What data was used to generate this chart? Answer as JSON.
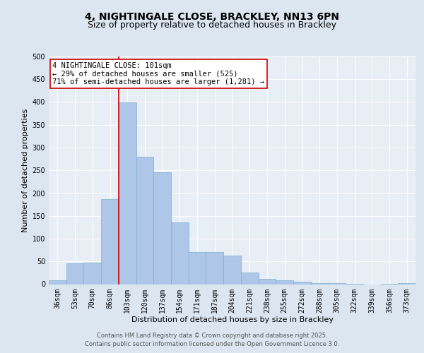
{
  "title1": "4, NIGHTINGALE CLOSE, BRACKLEY, NN13 6PN",
  "title2": "Size of property relative to detached houses in Brackley",
  "xlabel": "Distribution of detached houses by size in Brackley",
  "ylabel": "Number of detached properties",
  "categories": [
    "36sqm",
    "53sqm",
    "70sqm",
    "86sqm",
    "103sqm",
    "120sqm",
    "137sqm",
    "154sqm",
    "171sqm",
    "187sqm",
    "204sqm",
    "221sqm",
    "238sqm",
    "255sqm",
    "272sqm",
    "288sqm",
    "305sqm",
    "322sqm",
    "339sqm",
    "356sqm",
    "373sqm"
  ],
  "values": [
    9,
    46,
    47,
    187,
    399,
    280,
    246,
    135,
    70,
    70,
    63,
    25,
    12,
    9,
    6,
    3,
    2,
    1,
    0,
    1,
    2
  ],
  "bar_color": "#aec6e8",
  "bar_edge_color": "#7bafd4",
  "vline_x_index": 4,
  "vline_color": "#cc0000",
  "annotation_text": "4 NIGHTINGALE CLOSE: 101sqm\n← 29% of detached houses are smaller (525)\n71% of semi-detached houses are larger (1,281) →",
  "annotation_box_color": "#cc0000",
  "ylim": [
    0,
    500
  ],
  "yticks": [
    0,
    50,
    100,
    150,
    200,
    250,
    300,
    350,
    400,
    450,
    500
  ],
  "bg_color": "#dce6f0",
  "plot_bg_color": "#e8eef6",
  "footer_line1": "Contains HM Land Registry data © Crown copyright and database right 2025.",
  "footer_line2": "Contains public sector information licensed under the Open Government Licence 3.0.",
  "title_fontsize": 10,
  "subtitle_fontsize": 9,
  "tick_fontsize": 7,
  "ylabel_fontsize": 8,
  "xlabel_fontsize": 8,
  "annotation_fontsize": 7.5
}
